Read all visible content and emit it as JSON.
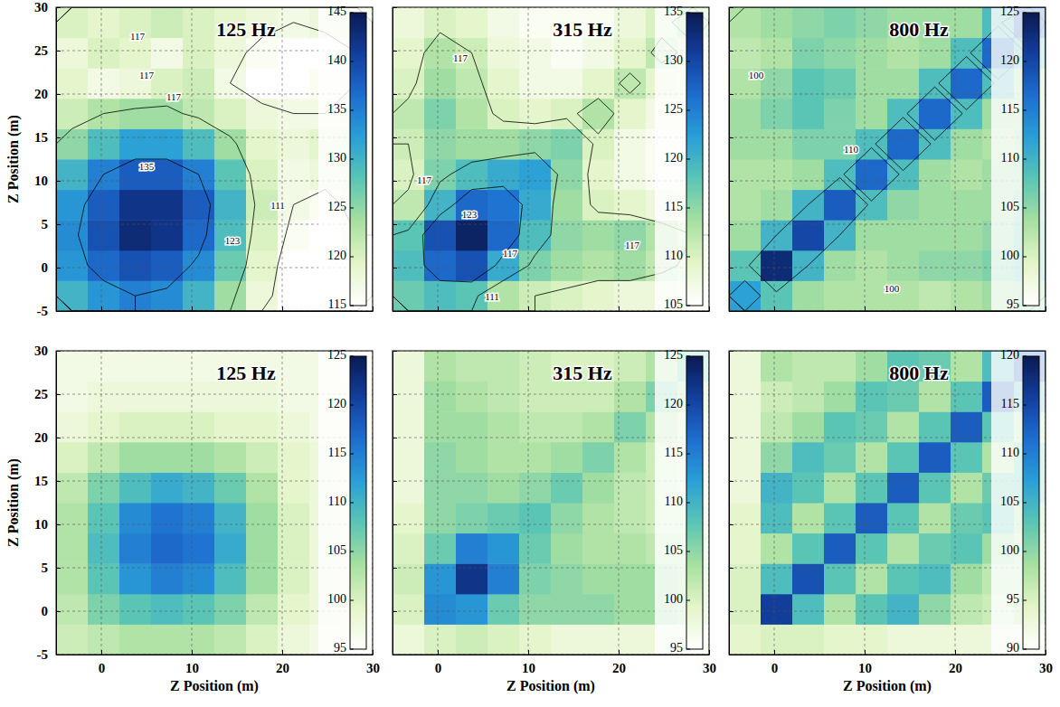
{
  "chart_data": [
    {
      "type": "heatmap",
      "title": "125 Hz",
      "y_label": "Z Position (m)",
      "xlim": [
        -5,
        30
      ],
      "ylim": [
        -5,
        30
      ],
      "xticks": [
        0,
        10,
        20,
        30
      ],
      "yticks": [
        -5,
        0,
        5,
        10,
        15,
        20,
        25,
        30
      ],
      "grid": true,
      "tick_labels": "y",
      "x_edges": [
        -5,
        -1.5,
        2,
        5.5,
        9,
        12.5,
        16,
        19.5,
        23,
        26.5,
        30
      ],
      "y_edges": [
        -5,
        -1.5,
        2,
        5.5,
        9,
        12.5,
        16,
        19.5,
        23,
        26.5,
        30
      ],
      "cells": [
        [
          130,
          133,
          135,
          134,
          130,
          124,
          118,
          115,
          114,
          116
        ],
        [
          133,
          137,
          139,
          138,
          134,
          127,
          119,
          115,
          114,
          116
        ],
        [
          134,
          139,
          143,
          142,
          137,
          129,
          120,
          116,
          115,
          117
        ],
        [
          133,
          138,
          142,
          142,
          138,
          130,
          121,
          117,
          116,
          118
        ],
        [
          130,
          135,
          138,
          138,
          135,
          128,
          120,
          117,
          118,
          119
        ],
        [
          125,
          129,
          132,
          132,
          129,
          124,
          119,
          118,
          119,
          120
        ],
        [
          121,
          123,
          124,
          124,
          122,
          120,
          118,
          117,
          117,
          118
        ],
        [
          119,
          117,
          118,
          120,
          121,
          117,
          115,
          115,
          116,
          117
        ],
        [
          118,
          120,
          119,
          117,
          120,
          118,
          116,
          115,
          115,
          117
        ],
        [
          120,
          119,
          120,
          121,
          120,
          119,
          118,
          117,
          118,
          119
        ]
      ],
      "colorbar": {
        "range": [
          115,
          145
        ],
        "ticks": [
          115,
          120,
          125,
          130,
          135,
          140,
          145
        ]
      },
      "contours": [
        {
          "value": 117,
          "x": 4,
          "y": 26.5
        },
        {
          "value": 117,
          "x": 5,
          "y": 22
        },
        {
          "value": 117,
          "x": 8,
          "y": 19.5
        },
        {
          "value": 135,
          "x": 5,
          "y": 11.5
        },
        {
          "value": 123,
          "x": 14.5,
          "y": 3
        },
        {
          "value": 111,
          "x": 19.5,
          "y": 7
        }
      ]
    },
    {
      "type": "heatmap",
      "title": "315 Hz",
      "xlim": [
        -5,
        30
      ],
      "ylim": [
        -5,
        30
      ],
      "xticks": [
        0,
        10,
        20,
        30
      ],
      "yticks": [
        -5,
        0,
        5,
        10,
        15,
        20,
        25,
        30
      ],
      "grid": true,
      "tick_labels": false,
      "x_edges": [
        -5,
        -1.5,
        2,
        5.5,
        9,
        12.5,
        16,
        19.5,
        23,
        26.5,
        30
      ],
      "y_edges": [
        -5,
        -1.5,
        2,
        5.5,
        9,
        12.5,
        16,
        19.5,
        23,
        26.5,
        30
      ],
      "cells": [
        [
          117,
          119,
          118,
          113,
          111,
          110,
          109,
          108,
          108,
          107
        ],
        [
          119,
          127,
          129,
          121,
          116,
          114,
          113,
          114,
          112,
          110
        ],
        [
          118,
          129,
          134,
          127,
          119,
          115,
          114,
          115,
          113,
          111
        ],
        [
          112,
          120,
          127,
          126,
          121,
          114,
          110,
          109,
          108,
          107
        ],
        [
          110,
          116,
          119,
          121,
          122,
          115,
          109,
          107,
          106,
          106
        ],
        [
          111,
          115,
          114,
          114,
          115,
          116,
          110,
          107,
          106,
          106
        ],
        [
          112,
          116,
          113,
          110,
          109,
          110,
          113,
          109,
          107,
          107
        ],
        [
          110,
          114,
          112,
          109,
          107,
          107,
          109,
          112,
          109,
          108
        ],
        [
          109,
          113,
          111,
          108,
          107,
          106,
          107,
          109,
          112,
          110
        ],
        [
          108,
          110,
          109,
          107,
          106,
          106,
          106,
          108,
          110,
          113
        ]
      ],
      "colorbar": {
        "range": [
          105,
          135
        ],
        "ticks": [
          105,
          110,
          115,
          120,
          125,
          130,
          135
        ]
      },
      "contours": [
        {
          "value": 123,
          "x": 3.5,
          "y": 6
        },
        {
          "value": 117,
          "x": 8,
          "y": 1.5
        },
        {
          "value": 117,
          "x": -1.5,
          "y": 10
        },
        {
          "value": 111,
          "x": 6,
          "y": -3.5
        },
        {
          "value": 117,
          "x": 2.5,
          "y": 24
        },
        {
          "value": 117,
          "x": 21.5,
          "y": 2.5
        }
      ]
    },
    {
      "type": "heatmap",
      "title": "800 Hz",
      "xlim": [
        -5,
        30
      ],
      "ylim": [
        -5,
        30
      ],
      "xticks": [
        0,
        10,
        20,
        30
      ],
      "yticks": [
        -5,
        0,
        5,
        10,
        15,
        20,
        25,
        30
      ],
      "grid": true,
      "tick_labels": false,
      "x_edges": [
        -5,
        -1.5,
        2,
        5.5,
        9,
        12.5,
        16,
        19.5,
        23,
        26.5,
        30
      ],
      "y_edges": [
        -5,
        -1.5,
        2,
        5.5,
        9,
        12.5,
        16,
        19.5,
        23,
        26.5,
        30
      ],
      "cells": [
        [
          112,
          108,
          104,
          103,
          103,
          103,
          102,
          103,
          104,
          105
        ],
        [
          108,
          123,
          110,
          104,
          103,
          104,
          105,
          105,
          106,
          108
        ],
        [
          104,
          110,
          120,
          110,
          104,
          104,
          104,
          104,
          105,
          107
        ],
        [
          103,
          104,
          110,
          118,
          109,
          105,
          104,
          104,
          104,
          106
        ],
        [
          103,
          103,
          104,
          109,
          117,
          109,
          104,
          103,
          104,
          105
        ],
        [
          104,
          104,
          106,
          106,
          109,
          117,
          109,
          104,
          103,
          104
        ],
        [
          104,
          106,
          108,
          106,
          104,
          109,
          117,
          109,
          104,
          104
        ],
        [
          103,
          105,
          108,
          107,
          104,
          104,
          109,
          117,
          109,
          104
        ],
        [
          102,
          103,
          106,
          105,
          104,
          103,
          104,
          109,
          117,
          109
        ],
        [
          103,
          104,
          105,
          106,
          105,
          104,
          104,
          104,
          109,
          118
        ]
      ],
      "colorbar": {
        "range": [
          95,
          125
        ],
        "ticks": [
          95,
          100,
          105,
          110,
          115,
          120,
          125
        ]
      },
      "contours": [
        {
          "value": 100,
          "x": -2,
          "y": 22
        },
        {
          "value": 100,
          "x": 13,
          "y": -2.5
        },
        {
          "value": 110,
          "x": 8.5,
          "y": 13.5
        }
      ]
    },
    {
      "type": "heatmap",
      "title": "125 Hz",
      "x_label": "Z Position (m)",
      "y_label": "Z Position (m)",
      "xlim": [
        -5,
        30
      ],
      "ylim": [
        -5,
        30
      ],
      "xticks": [
        0,
        10,
        20,
        30
      ],
      "yticks": [
        -5,
        0,
        5,
        10,
        15,
        20,
        25,
        30
      ],
      "grid": true,
      "tick_labels": true,
      "x_edges": [
        -5,
        -1.5,
        2,
        5.5,
        9,
        12.5,
        16,
        19.5,
        23,
        26.5,
        30
      ],
      "y_edges": [
        -5,
        -1.5,
        2,
        5.5,
        9,
        12.5,
        16,
        19.5,
        23,
        26.5,
        30
      ],
      "cells": [
        [
          101,
          102,
          103,
          103,
          103,
          102,
          100,
          98,
          97,
          97
        ],
        [
          102,
          106,
          108,
          109,
          108,
          106,
          102,
          99,
          98,
          97
        ],
        [
          103,
          108,
          113,
          115,
          114,
          109,
          104,
          100,
          98,
          97
        ],
        [
          103,
          109,
          115,
          117,
          116,
          111,
          104,
          100,
          98,
          97
        ],
        [
          103,
          108,
          114,
          116,
          115,
          110,
          104,
          100,
          98,
          97
        ],
        [
          102,
          106,
          109,
          111,
          110,
          107,
          103,
          99,
          98,
          97
        ],
        [
          100,
          102,
          104,
          104,
          104,
          103,
          101,
          99,
          98,
          97
        ],
        [
          98,
          99,
          100,
          100,
          100,
          99,
          99,
          98,
          97,
          97
        ],
        [
          97,
          98,
          98,
          98,
          98,
          98,
          98,
          97,
          97,
          97
        ],
        [
          97,
          97,
          97,
          97,
          97,
          97,
          97,
          97,
          97,
          96
        ]
      ],
      "colorbar": {
        "range": [
          95,
          125
        ],
        "ticks": [
          95,
          100,
          105,
          110,
          115,
          120,
          125
        ]
      }
    },
    {
      "type": "heatmap",
      "title": "315 Hz",
      "x_label": "Z Position (m)",
      "xlim": [
        -5,
        30
      ],
      "ylim": [
        -5,
        30
      ],
      "xticks": [
        0,
        10,
        20,
        30
      ],
      "yticks": [
        -5,
        0,
        5,
        10,
        15,
        20,
        25,
        30
      ],
      "grid": true,
      "tick_labels": "x",
      "x_edges": [
        -5,
        -1.5,
        2,
        5.5,
        9,
        12.5,
        16,
        19.5,
        23,
        26.5,
        30
      ],
      "y_edges": [
        -5,
        -1.5,
        2,
        5.5,
        9,
        12.5,
        16,
        19.5,
        23,
        26.5,
        30
      ],
      "cells": [
        [
          98,
          100,
          101,
          100,
          99,
          98,
          98,
          98,
          98,
          98
        ],
        [
          100,
          114,
          113,
          107,
          105,
          105,
          105,
          104,
          104,
          103
        ],
        [
          101,
          113,
          122,
          115,
          106,
          105,
          104,
          104,
          104,
          103
        ],
        [
          100,
          107,
          115,
          113,
          107,
          104,
          103,
          103,
          102,
          102
        ],
        [
          99,
          105,
          106,
          107,
          108,
          105,
          103,
          102,
          101,
          101
        ],
        [
          98,
          105,
          105,
          104,
          105,
          107,
          104,
          102,
          101,
          100
        ],
        [
          98,
          105,
          104,
          103,
          103,
          104,
          106,
          103,
          101,
          100
        ],
        [
          98,
          104,
          104,
          103,
          102,
          102,
          103,
          106,
          103,
          101
        ],
        [
          98,
          104,
          103,
          102,
          101,
          101,
          101,
          103,
          106,
          103
        ],
        [
          98,
          103,
          102,
          102,
          101,
          100,
          100,
          101,
          103,
          107
        ]
      ],
      "colorbar": {
        "range": [
          95,
          125
        ],
        "ticks": [
          95,
          100,
          105,
          110,
          115,
          120,
          125
        ]
      }
    },
    {
      "type": "heatmap",
      "title": "800 Hz",
      "x_label": "Z Position (m)",
      "xlim": [
        -5,
        30
      ],
      "ylim": [
        -5,
        30
      ],
      "xticks": [
        0,
        10,
        20,
        30
      ],
      "yticks": [
        -5,
        0,
        5,
        10,
        15,
        20,
        25,
        30
      ],
      "grid": true,
      "tick_labels": "x",
      "x_edges": [
        -5,
        -1.5,
        2,
        5.5,
        9,
        12.5,
        16,
        19.5,
        23,
        26.5,
        30
      ],
      "y_edges": [
        -5,
        -1.5,
        2,
        5.5,
        9,
        12.5,
        16,
        19.5,
        23,
        26.5,
        30
      ],
      "cells": [
        [
          94,
          95,
          95,
          94,
          94,
          93,
          93,
          93,
          93,
          93
        ],
        [
          95,
          116,
          104,
          98,
          103,
          105,
          100,
          97,
          96,
          98
        ],
        [
          95,
          104,
          114,
          103,
          98,
          103,
          104,
          99,
          97,
          97
        ],
        [
          94,
          98,
          103,
          113,
          103,
          98,
          102,
          103,
          99,
          97
        ],
        [
          94,
          104,
          98,
          103,
          113,
          103,
          98,
          102,
          103,
          99
        ],
        [
          93,
          105,
          103,
          98,
          103,
          113,
          103,
          98,
          102,
          103
        ],
        [
          93,
          100,
          104,
          102,
          98,
          103,
          113,
          103,
          98,
          102
        ],
        [
          93,
          97,
          99,
          103,
          102,
          98,
          103,
          113,
          103,
          98
        ],
        [
          93,
          96,
          97,
          99,
          103,
          102,
          98,
          103,
          113,
          104
        ],
        [
          93,
          98,
          97,
          97,
          99,
          103,
          102,
          98,
          104,
          114
        ]
      ],
      "colorbar": {
        "range": [
          90,
          120
        ],
        "ticks": [
          90,
          95,
          100,
          105,
          110,
          115,
          120
        ]
      }
    }
  ]
}
